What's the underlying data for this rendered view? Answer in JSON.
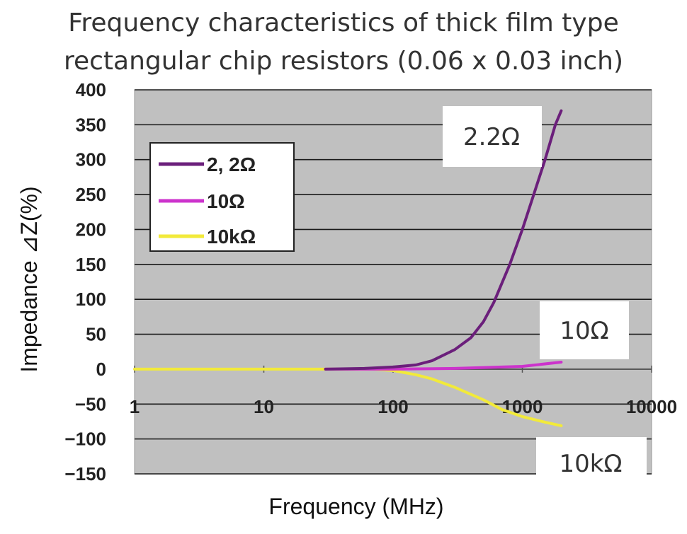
{
  "title_line1": "Frequency characteristics of thick film type",
  "title_line2": "rectangular chip resistors (0.06 x 0.03 inch)",
  "chart_data": {
    "type": "line",
    "xlabel": "Frequency (MHz)",
    "ylabel": "Impedance ⊿Z(%)",
    "xscale": "log",
    "xlim": [
      1,
      10000
    ],
    "ylim": [
      -150,
      400
    ],
    "x_ticks": [
      "1",
      "10",
      "100",
      "1000",
      "10000"
    ],
    "y_ticks": [
      "400",
      "350",
      "300",
      "250",
      "200",
      "150",
      "100",
      "50",
      "0",
      "-50",
      "-100",
      "-150"
    ],
    "grid": "horizontal",
    "legend_position": "top-left",
    "series": [
      {
        "name": "2, 2Ω",
        "color": "#6b1f7b",
        "x": [
          30,
          60,
          100,
          150,
          200,
          300,
          400,
          500,
          600,
          800,
          1000,
          1200,
          1500,
          1800,
          2000
        ],
        "y": [
          0,
          1,
          3,
          6,
          12,
          28,
          45,
          68,
          95,
          150,
          200,
          245,
          300,
          350,
          370
        ]
      },
      {
        "name": "10Ω",
        "color": "#cc33cc",
        "x": [
          30,
          100,
          300,
          1000,
          2000
        ],
        "y": [
          0,
          0,
          1,
          4,
          10
        ]
      },
      {
        "name": "10kΩ",
        "color": "#f2ea3a",
        "x": [
          1,
          3,
          10,
          30,
          70,
          100,
          150,
          200,
          300,
          500,
          700,
          1000,
          1500,
          2000
        ],
        "y": [
          0,
          0,
          0,
          0,
          0,
          -2,
          -8,
          -14,
          -26,
          -44,
          -58,
          -68,
          -76,
          -81
        ]
      }
    ],
    "annotations": [
      {
        "text": "2.2Ω",
        "series": "2, 2Ω"
      },
      {
        "text": "10Ω",
        "series": "10Ω"
      },
      {
        "text": "10kΩ",
        "series": "10kΩ"
      }
    ]
  }
}
